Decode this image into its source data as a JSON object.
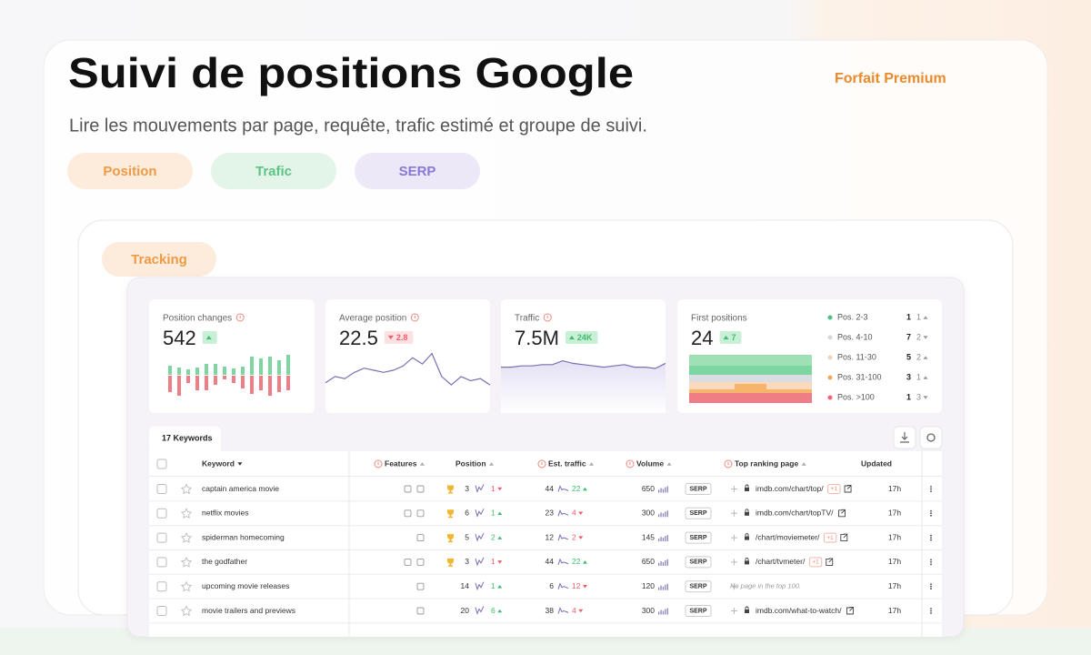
{
  "header": {
    "title": "Suivi de positions Google",
    "subtitle": "Lire les mouvements par page, requête, trafic estimé et groupe de suivi.",
    "plan": "Forfait Premium"
  },
  "tabs": [
    "Position",
    "Trafic",
    "SERP"
  ],
  "section": "Tracking",
  "stats": [
    {
      "label": "Position changes",
      "value": 542,
      "direction": "up",
      "bars_up": [
        10,
        8,
        6,
        8,
        12,
        12,
        9,
        7,
        9,
        20,
        18,
        20,
        16,
        22
      ],
      "bars_down": [
        18,
        22,
        8,
        16,
        16,
        10,
        4,
        8,
        14,
        20,
        16,
        22,
        18,
        16
      ]
    },
    {
      "label": "Average position",
      "value": 22.5,
      "change": 2.8,
      "direction": "down",
      "trend": [
        4,
        7,
        6,
        9,
        11,
        10,
        9,
        10,
        12,
        16,
        13,
        18,
        7,
        3,
        7,
        5,
        6,
        3
      ]
    },
    {
      "label": "Traffic",
      "value": "7.5M",
      "change": "24K",
      "direction": "up",
      "trend": [
        6,
        6,
        7,
        7,
        8,
        8,
        11,
        9,
        8,
        7,
        6,
        7,
        8,
        6,
        6,
        5,
        9
      ]
    },
    {
      "label": "First positions",
      "value": 24,
      "change": 7,
      "direction": "up",
      "breakdown": [
        {
          "label": "Pos. 2-3",
          "count": 1,
          "change": 1,
          "direction": "up",
          "color": "#4cc17e"
        },
        {
          "label": "Pos. 4-10",
          "count": 7,
          "change": 2,
          "direction": "down",
          "color": "#d5d9dc"
        },
        {
          "label": "Pos. 11-30",
          "count": 5,
          "change": 2,
          "direction": "up",
          "color": "#f6d2b4"
        },
        {
          "label": "Pos. 31-100",
          "count": 3,
          "change": 1,
          "direction": "up",
          "color": "#f4a857"
        },
        {
          "label": "Pos. >100",
          "count": 1,
          "change": 3,
          "direction": "down",
          "color": "#ef6470"
        }
      ]
    }
  ],
  "table": {
    "tab": "17 Keywords",
    "columns": [
      "Keyword",
      "Features",
      "Position",
      "Est. traffic",
      "Volume",
      "Top ranking page",
      "Updated"
    ],
    "rows": [
      {
        "keyword": "captain america movie",
        "position": 3,
        "position_change": 1,
        "position_dir": "down",
        "traffic": 44,
        "traffic_change": 22,
        "traffic_dir": "up",
        "volume": 650,
        "serp": "SERP",
        "page": "imdb.com/chart/top/",
        "page_found": true,
        "extra": "+1",
        "updated": "17h"
      },
      {
        "keyword": "netflix movies",
        "position": 6,
        "position_change": 1,
        "position_dir": "up",
        "traffic": 23,
        "traffic_change": 4,
        "traffic_dir": "down",
        "volume": 300,
        "serp": "SERP",
        "page": "imdb.com/chart/topTV/",
        "page_found": true,
        "updated": "17h"
      },
      {
        "keyword": "spiderman homecoming",
        "position": 5,
        "position_change": 2,
        "position_dir": "up",
        "traffic": 12,
        "traffic_change": 2,
        "traffic_dir": "down",
        "volume": 145,
        "serp": "SERP",
        "page": "/chart/moviemeter/",
        "page_found": true,
        "extra": "+1",
        "updated": "17h"
      },
      {
        "keyword": "the godfather",
        "position": 3,
        "position_change": 1,
        "position_dir": "down",
        "traffic": 44,
        "traffic_change": 22,
        "traffic_dir": "up",
        "volume": 650,
        "serp": "SERP",
        "page": "/chart/tvmeter/",
        "page_found": true,
        "extra": "+1",
        "updated": "17h"
      },
      {
        "keyword": "upcoming movie releases",
        "position": 14,
        "position_change": 1,
        "position_dir": "up",
        "traffic": 6,
        "traffic_change": 12,
        "traffic_dir": "down",
        "volume": 120,
        "serp": "SERP",
        "page": "No page in the top 100.",
        "page_found": false,
        "updated": "17h"
      },
      {
        "keyword": "movie trailers and previews",
        "position": 20,
        "position_change": 6,
        "position_dir": "up",
        "traffic": 38,
        "traffic_change": 4,
        "traffic_dir": "down",
        "volume": 300,
        "serp": "SERP",
        "page": "imdb.com/what-to-watch/",
        "page_found": true,
        "updated": "17h"
      }
    ]
  }
}
